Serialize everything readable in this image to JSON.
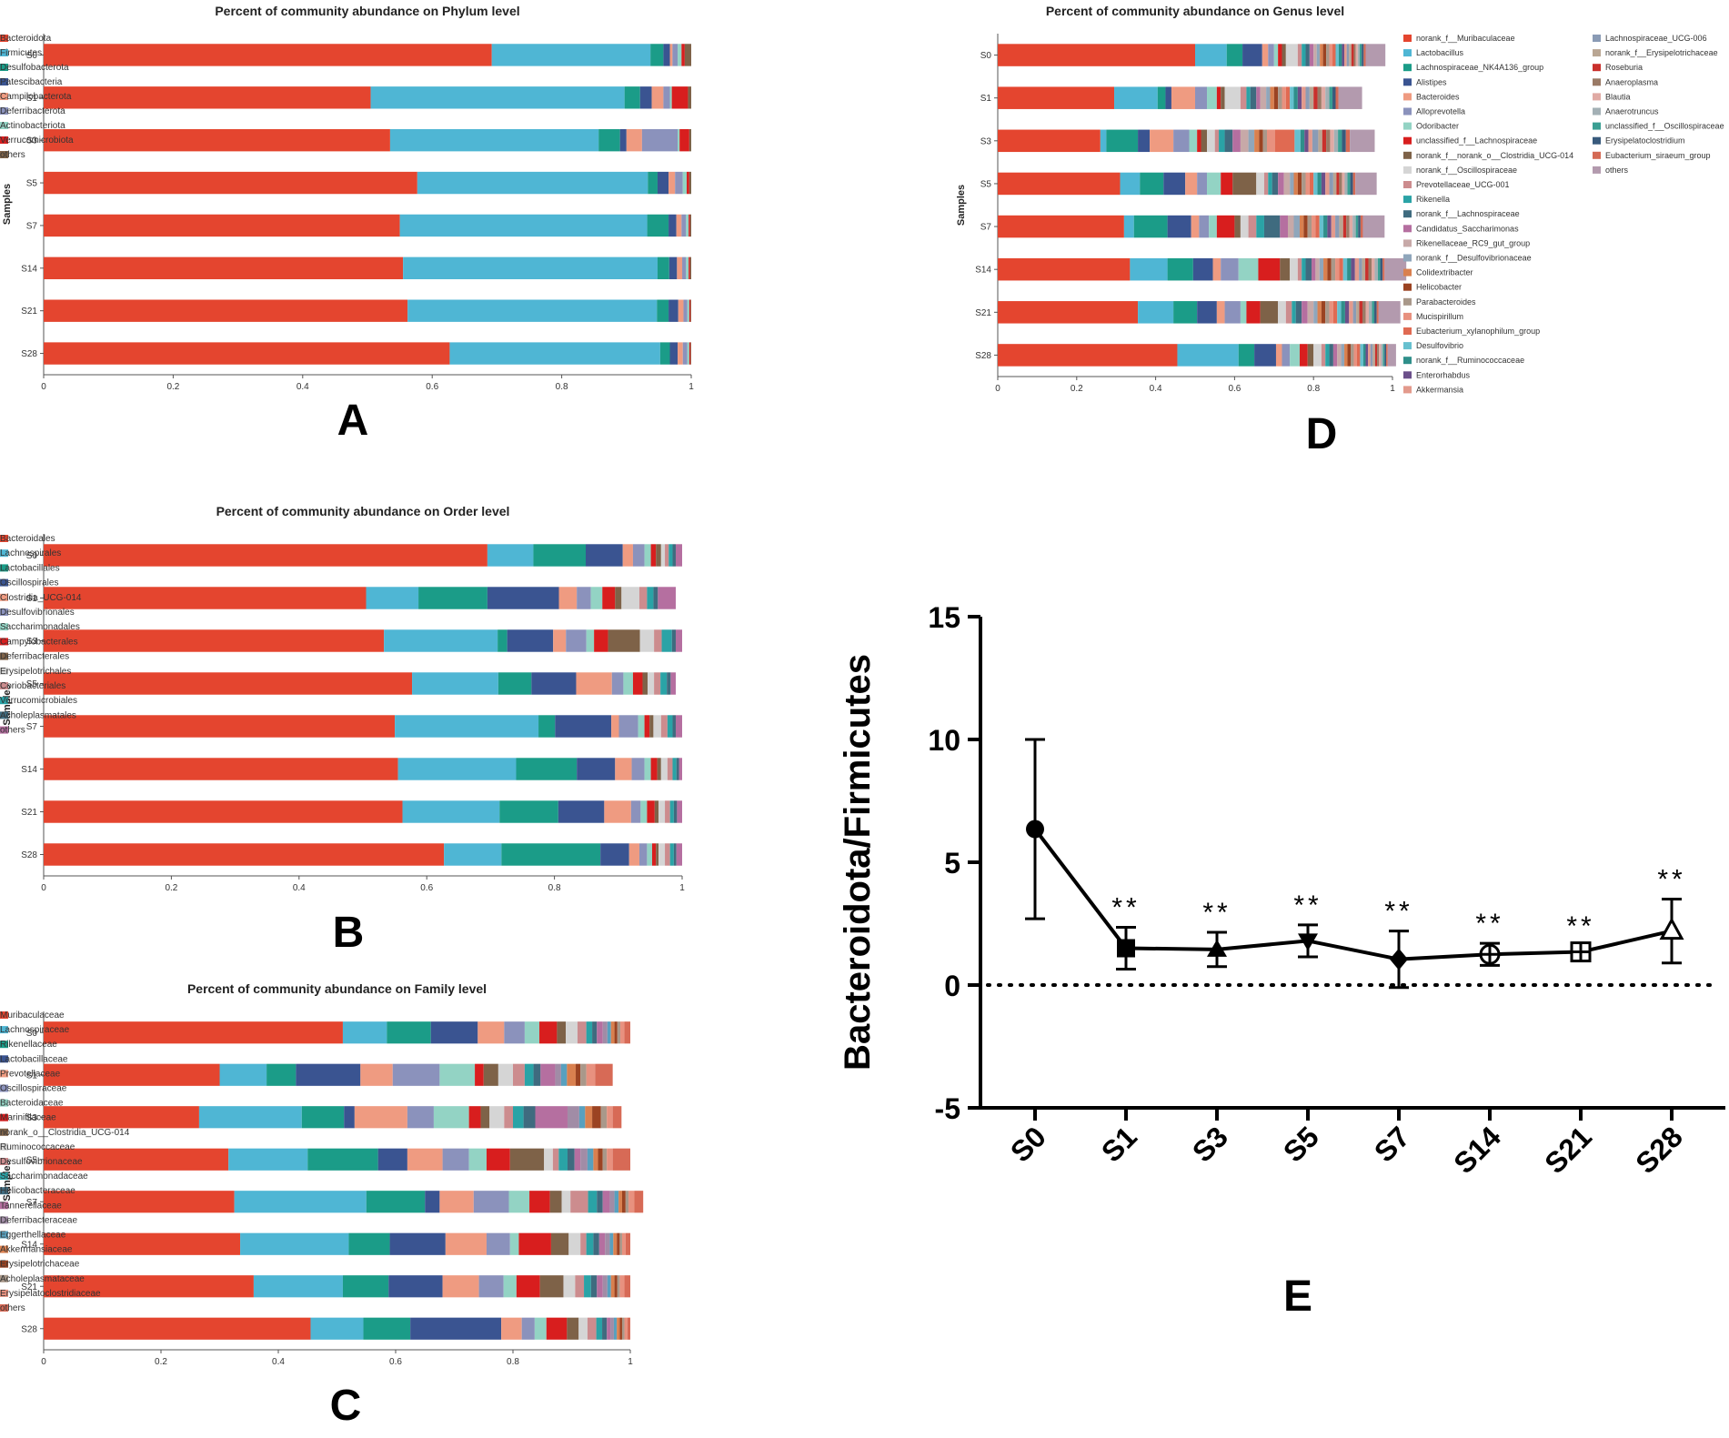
{
  "colors": [
    "#e4452f",
    "#4fb6d4",
    "#1b9c88",
    "#3a5491",
    "#ef9b81",
    "#8b92bc",
    "#93d3c4",
    "#d81e1e",
    "#7e6248",
    "#d5d5d5",
    "#cc8c8e",
    "#2aa3a6",
    "#3f6b7f",
    "#b56fa0",
    "#a18ca6",
    "#58a0be",
    "#d9804f",
    "#9b4322",
    "#a9988a",
    "#e8917f",
    "#c7a9a8",
    "#66c0cf"
  ],
  "chart_data": [
    {
      "id": "A",
      "type": "stacked-bar",
      "panel_label": "A",
      "title": "Percent of community abundance on Phylum level",
      "ylabel": "Samples",
      "xlim": [
        0,
        1
      ],
      "xticks": [
        "0",
        "0.2",
        "0.4",
        "0.6",
        "0.8",
        "1"
      ],
      "categories": [
        "S0",
        "S1",
        "S3",
        "S5",
        "S7",
        "S14",
        "S21",
        "S28"
      ],
      "legend_items": [
        "Bacteroidota",
        "Firmicutes",
        "Desulfobacterota",
        "Patescibacteria",
        "Campilobacterota",
        "Deferribacterota",
        "Actinobacteriota",
        "Verrucomicrobiota",
        "others"
      ],
      "legend_colors": [
        "#e4452f",
        "#4fb6d4",
        "#1b9c88",
        "#3a5491",
        "#ef9b81",
        "#8b92bc",
        "#93d3c4",
        "#d81e1e",
        "#7e6248"
      ],
      "segments": [
        [
          0.692,
          0.245,
          0.02,
          0.01,
          0.004,
          0.008,
          0.006,
          0.005,
          0.01
        ],
        [
          0.505,
          0.392,
          0.024,
          0.018,
          0.018,
          0.01,
          0.003,
          0.025,
          0.005
        ],
        [
          0.535,
          0.322,
          0.033,
          0.01,
          0.024,
          0.055,
          0.003,
          0.015,
          0.003
        ],
        [
          0.577,
          0.356,
          0.015,
          0.017,
          0.01,
          0.012,
          0.006,
          0.004,
          0.003
        ],
        [
          0.55,
          0.382,
          0.033,
          0.012,
          0.008,
          0.007,
          0.004,
          0.002,
          0.002
        ],
        [
          0.555,
          0.393,
          0.018,
          0.012,
          0.008,
          0.006,
          0.004,
          0.002,
          0.002
        ],
        [
          0.562,
          0.385,
          0.018,
          0.015,
          0.008,
          0.006,
          0.003,
          0.002,
          0.001
        ],
        [
          0.627,
          0.325,
          0.015,
          0.012,
          0.008,
          0.007,
          0.003,
          0.002,
          0.001
        ]
      ]
    },
    {
      "id": "B",
      "type": "stacked-bar",
      "panel_label": "B",
      "title": "Percent of community abundance on Order level",
      "ylabel": "Samples",
      "xlim": [
        0,
        1
      ],
      "xticks": [
        "0",
        "0.2",
        "0.4",
        "0.6",
        "0.8",
        "1"
      ],
      "categories": [
        "S0",
        "S1",
        "S3",
        "S5",
        "S7",
        "S14",
        "S21",
        "S28"
      ],
      "legend_items": [
        "Bacteroidales",
        "Lachnospirales",
        "Lactobacillales",
        "Oscillospirales",
        "Clostridia_UCG-014",
        "Desulfovibrionales",
        "Saccharimonadales",
        "Campylobacterales",
        "Deferribacterales",
        "Erysipelotrichales",
        "Coriobacteriales",
        "Verrucomicrobiales",
        "Acholeplasmatales",
        "others"
      ],
      "legend_colors": [
        "#e4452f",
        "#4fb6d4",
        "#1b9c88",
        "#3a5491",
        "#ef9b81",
        "#8b92bc",
        "#93d3c4",
        "#d81e1e",
        "#7e6248",
        "#d5d5d5",
        "#cc8c8e",
        "#2aa3a6",
        "#3f6b7f",
        "#b56fa0"
      ],
      "segments": [
        [
          0.695,
          0.072,
          0.082,
          0.058,
          0.016,
          0.018,
          0.01,
          0.008,
          0.008,
          0.006,
          0.006,
          0.006,
          0.005,
          0.01
        ],
        [
          0.505,
          0.082,
          0.108,
          0.112,
          0.028,
          0.022,
          0.018,
          0.02,
          0.01,
          0.028,
          0.012,
          0.01,
          0.007,
          0.028
        ],
        [
          0.533,
          0.178,
          0.015,
          0.072,
          0.02,
          0.032,
          0.012,
          0.022,
          0.05,
          0.022,
          0.012,
          0.016,
          0.006,
          0.01
        ],
        [
          0.577,
          0.135,
          0.052,
          0.07,
          0.056,
          0.018,
          0.015,
          0.015,
          0.008,
          0.01,
          0.01,
          0.01,
          0.006,
          0.008
        ],
        [
          0.55,
          0.225,
          0.026,
          0.088,
          0.012,
          0.03,
          0.01,
          0.008,
          0.006,
          0.012,
          0.01,
          0.008,
          0.005,
          0.01
        ],
        [
          0.555,
          0.185,
          0.095,
          0.06,
          0.026,
          0.02,
          0.01,
          0.01,
          0.006,
          0.01,
          0.008,
          0.006,
          0.004,
          0.005
        ],
        [
          0.562,
          0.152,
          0.092,
          0.072,
          0.042,
          0.015,
          0.01,
          0.012,
          0.006,
          0.01,
          0.008,
          0.006,
          0.005,
          0.008
        ],
        [
          0.627,
          0.09,
          0.155,
          0.045,
          0.016,
          0.012,
          0.008,
          0.006,
          0.004,
          0.01,
          0.008,
          0.006,
          0.004,
          0.009
        ]
      ]
    },
    {
      "id": "C",
      "type": "stacked-bar",
      "panel_label": "C",
      "title": "Percent of community abundance on Family level",
      "ylabel": "Samples",
      "xlim": [
        0,
        1
      ],
      "xticks": [
        "0",
        "0.2",
        "0.4",
        "0.6",
        "0.8",
        "1"
      ],
      "categories": [
        "S0",
        "S1",
        "S3",
        "S5",
        "S7",
        "S14",
        "S21",
        "S28"
      ],
      "legend_items": [
        "Muribaculaceae",
        "Lachnospiraceae",
        "Rikenellaceae",
        "Lactobacillaceae",
        "Prevotellaceae",
        "Oscillospiraceae",
        "Bacteroidaceae",
        "Marinifilaceae",
        "norank_o__Clostridia_UCG-014",
        "Ruminococcaceae",
        "Desulfovibrionaceae",
        "Saccharimonadaceae",
        "Helicobacteraceae",
        "Tannerellaceae",
        "Deferribacteraceae",
        "Eggerthellaceae",
        "Akkermansiaceae",
        "Erysipelotrichaceae",
        "Acholeplasmataceae",
        "Erysipelatoclostridiaceae",
        "others"
      ],
      "legend_colors": [
        "#e4452f",
        "#4fb6d4",
        "#1b9c88",
        "#3a5491",
        "#ef9b81",
        "#8b92bc",
        "#93d3c4",
        "#d81e1e",
        "#7e6248",
        "#d5d5d5",
        "#cc8c8e",
        "#2aa3a6",
        "#3f6b7f",
        "#b56fa0",
        "#a18ca6",
        "#58a0be",
        "#d9804f",
        "#9b4322",
        "#a9988a",
        "#e8917f",
        "#d76a56"
      ],
      "segments": [
        [
          0.51,
          0.075,
          0.075,
          0.08,
          0.045,
          0.035,
          0.025,
          0.03,
          0.015,
          0.02,
          0.015,
          0.01,
          0.008,
          0.01,
          0.008,
          0.006,
          0.006,
          0.005,
          0.005,
          0.007,
          0.01
        ],
        [
          0.3,
          0.08,
          0.05,
          0.11,
          0.055,
          0.08,
          0.06,
          0.015,
          0.025,
          0.025,
          0.02,
          0.015,
          0.012,
          0.025,
          0.01,
          0.01,
          0.015,
          0.008,
          0.01,
          0.015,
          0.03
        ],
        [
          0.265,
          0.175,
          0.072,
          0.018,
          0.09,
          0.045,
          0.06,
          0.02,
          0.015,
          0.025,
          0.015,
          0.018,
          0.02,
          0.055,
          0.02,
          0.01,
          0.012,
          0.015,
          0.01,
          0.01,
          0.015
        ],
        [
          0.315,
          0.135,
          0.12,
          0.05,
          0.06,
          0.045,
          0.03,
          0.04,
          0.058,
          0.015,
          0.01,
          0.015,
          0.012,
          0.01,
          0.012,
          0.01,
          0.008,
          0.008,
          0.007,
          0.01,
          0.03
        ],
        [
          0.325,
          0.225,
          0.1,
          0.025,
          0.058,
          0.06,
          0.035,
          0.035,
          0.02,
          0.015,
          0.03,
          0.015,
          0.01,
          0.012,
          0.008,
          0.007,
          0.006,
          0.006,
          0.005,
          0.01,
          0.015
        ],
        [
          0.335,
          0.185,
          0.07,
          0.095,
          0.07,
          0.04,
          0.015,
          0.055,
          0.03,
          0.02,
          0.01,
          0.012,
          0.01,
          0.01,
          0.008,
          0.006,
          0.006,
          0.005,
          0.004,
          0.006,
          0.008
        ],
        [
          0.358,
          0.152,
          0.078,
          0.092,
          0.062,
          0.042,
          0.022,
          0.04,
          0.04,
          0.02,
          0.015,
          0.012,
          0.01,
          0.01,
          0.008,
          0.006,
          0.006,
          0.005,
          0.004,
          0.008,
          0.01
        ],
        [
          0.455,
          0.09,
          0.08,
          0.155,
          0.035,
          0.022,
          0.02,
          0.035,
          0.02,
          0.015,
          0.015,
          0.01,
          0.008,
          0.006,
          0.006,
          0.005,
          0.005,
          0.004,
          0.004,
          0.005,
          0.005
        ]
      ]
    },
    {
      "id": "D",
      "type": "stacked-bar",
      "panel_label": "D",
      "title": "Percent of community abundance on Genus level",
      "ylabel": "Samples",
      "xlim": [
        0,
        1
      ],
      "xticks": [
        "0",
        "0.2",
        "0.4",
        "0.6",
        "0.8",
        "1"
      ],
      "categories": [
        "S0",
        "S1",
        "S3",
        "S5",
        "S7",
        "S14",
        "S21",
        "S28"
      ],
      "legend_items": [
        "norank_f__Muribaculaceae",
        "Lactobacillus",
        "Lachnospiraceae_NK4A136_group",
        "Alistipes",
        "Bacteroides",
        "Alloprevotella",
        "Odoribacter",
        "unclassified_f__Lachnospiraceae",
        "norank_f__norank_o__Clostridia_UCG-014",
        "norank_f__Oscillospiraceae",
        "Prevotellaceae_UCG-001",
        "Rikenella",
        "norank_f__Lachnospiraceae",
        "Candidatus_Saccharimonas",
        "Rikenellaceae_RC9_gut_group",
        "norank_f__Desulfovibrionaceae",
        "Colidextribacter",
        "Helicobacter",
        "Parabacteroides",
        "Mucispirillum",
        "Eubacterium_xylanophilum_group",
        "Desulfovibrio",
        "norank_f__Ruminococcaceae",
        "Enterorhabdus",
        "Akkermansia",
        "Lachnospiraceae_UCG-006",
        "norank_f__Erysipelotrichaceae",
        "Roseburia",
        "Anaeroplasma",
        "Blautia",
        "Anaerotruncus",
        "unclassified_f__Oscillospiraceae",
        "Erysipelatoclostridium",
        "Eubacterium_siraeum_group",
        "others"
      ],
      "legend_colors": [
        "#e4452f",
        "#4fb6d4",
        "#1b9c88",
        "#3a5491",
        "#ef9b81",
        "#8b92bc",
        "#93d3c4",
        "#d81e1e",
        "#7e6248",
        "#d5d5d5",
        "#cc8c8e",
        "#2aa3a6",
        "#3f6b7f",
        "#b56fa0",
        "#c7a9a8",
        "#8fa6bb",
        "#d9804f",
        "#9b4322",
        "#a9988a",
        "#e8917f",
        "#e06a52",
        "#66c0cf",
        "#2f8f8a",
        "#6b4f8a",
        "#e39a8c",
        "#8a9bb5",
        "#b9a693",
        "#c9302c",
        "#9a7a66",
        "#e0aaa4",
        "#a3b0b5",
        "#3a9f93",
        "#385a7c",
        "#d46a55",
        "#b39aae"
      ],
      "segments": [
        [
          0.5,
          0.08,
          0.04,
          0.05,
          0.015,
          0.015,
          0.01,
          0.01,
          0.01,
          0.03,
          0.01,
          0.01,
          0.01,
          0.01,
          0.008,
          0.008,
          0.008,
          0.008,
          0.008,
          0.008,
          0.008,
          0.008,
          0.008,
          0.006,
          0.006,
          0.006,
          0.006,
          0.006,
          0.005,
          0.005,
          0.005,
          0.005,
          0.005,
          0.005,
          0.05
        ],
        [
          0.295,
          0.11,
          0.02,
          0.015,
          0.06,
          0.03,
          0.025,
          0.01,
          0.01,
          0.04,
          0.015,
          0.01,
          0.015,
          0.01,
          0.015,
          0.01,
          0.01,
          0.01,
          0.01,
          0.01,
          0.01,
          0.01,
          0.01,
          0.01,
          0.01,
          0.01,
          0.01,
          0.01,
          0.01,
          0.01,
          0.01,
          0.008,
          0.008,
          0.007,
          0.06
        ],
        [
          0.26,
          0.015,
          0.08,
          0.03,
          0.06,
          0.04,
          0.02,
          0.01,
          0.015,
          0.02,
          0.01,
          0.015,
          0.02,
          0.02,
          0.02,
          0.015,
          0.012,
          0.01,
          0.01,
          0.02,
          0.05,
          0.015,
          0.01,
          0.01,
          0.01,
          0.015,
          0.01,
          0.01,
          0.01,
          0.01,
          0.01,
          0.01,
          0.01,
          0.01,
          0.063
        ],
        [
          0.31,
          0.05,
          0.06,
          0.055,
          0.03,
          0.025,
          0.035,
          0.03,
          0.06,
          0.02,
          0.01,
          0.01,
          0.015,
          0.015,
          0.015,
          0.01,
          0.01,
          0.01,
          0.01,
          0.01,
          0.01,
          0.01,
          0.01,
          0.01,
          0.01,
          0.01,
          0.008,
          0.007,
          0.007,
          0.007,
          0.007,
          0.007,
          0.007,
          0.006,
          0.054
        ],
        [
          0.32,
          0.025,
          0.085,
          0.06,
          0.02,
          0.025,
          0.02,
          0.045,
          0.015,
          0.02,
          0.02,
          0.02,
          0.04,
          0.02,
          0.015,
          0.015,
          0.01,
          0.01,
          0.01,
          0.01,
          0.01,
          0.01,
          0.01,
          0.01,
          0.01,
          0.01,
          0.01,
          0.008,
          0.008,
          0.008,
          0.008,
          0.006,
          0.006,
          0.006,
          0.055
        ],
        [
          0.335,
          0.095,
          0.065,
          0.05,
          0.02,
          0.045,
          0.05,
          0.055,
          0.025,
          0.02,
          0.01,
          0.01,
          0.015,
          0.01,
          0.01,
          0.01,
          0.01,
          0.01,
          0.01,
          0.01,
          0.01,
          0.01,
          0.01,
          0.01,
          0.01,
          0.008,
          0.008,
          0.008,
          0.008,
          0.008,
          0.008,
          0.006,
          0.006,
          0.005,
          0.055
        ],
        [
          0.355,
          0.09,
          0.06,
          0.05,
          0.02,
          0.04,
          0.015,
          0.035,
          0.045,
          0.02,
          0.015,
          0.01,
          0.015,
          0.015,
          0.015,
          0.01,
          0.01,
          0.01,
          0.01,
          0.01,
          0.01,
          0.01,
          0.01,
          0.01,
          0.01,
          0.008,
          0.008,
          0.008,
          0.008,
          0.008,
          0.008,
          0.006,
          0.006,
          0.005,
          0.055
        ],
        [
          0.455,
          0.155,
          0.04,
          0.055,
          0.015,
          0.02,
          0.025,
          0.02,
          0.015,
          0.02,
          0.01,
          0.01,
          0.01,
          0.01,
          0.01,
          0.008,
          0.008,
          0.008,
          0.008,
          0.008,
          0.008,
          0.008,
          0.006,
          0.006,
          0.006,
          0.006,
          0.006,
          0.005,
          0.005,
          0.005,
          0.005,
          0.004,
          0.004,
          0.004,
          0.021
        ]
      ]
    },
    {
      "id": "E",
      "type": "line",
      "panel_label": "E",
      "ylabel": "Bacteroidota/Firmicutes",
      "ylim": [
        -5,
        15
      ],
      "yticks": [
        "-5",
        "0",
        "5",
        "10",
        "15"
      ],
      "ytick_values": [
        -5,
        0,
        5,
        10,
        15
      ],
      "categories": [
        "S0",
        "S1",
        "S3",
        "S5",
        "S7",
        "S14",
        "S21",
        "S28"
      ],
      "values": [
        6.35,
        1.5,
        1.45,
        1.8,
        1.05,
        1.25,
        1.35,
        2.2
      ],
      "error": [
        3.65,
        0.85,
        0.7,
        0.65,
        1.15,
        0.45,
        0.25,
        1.3
      ],
      "markers": [
        "circle",
        "square",
        "triangle",
        "triangle-down",
        "diamond",
        "circle-plus",
        "square-plus",
        "triangle-open"
      ],
      "significance": [
        "",
        "**",
        "**",
        "**",
        "**",
        "**",
        "**",
        "**"
      ],
      "reference_line": 0
    }
  ]
}
